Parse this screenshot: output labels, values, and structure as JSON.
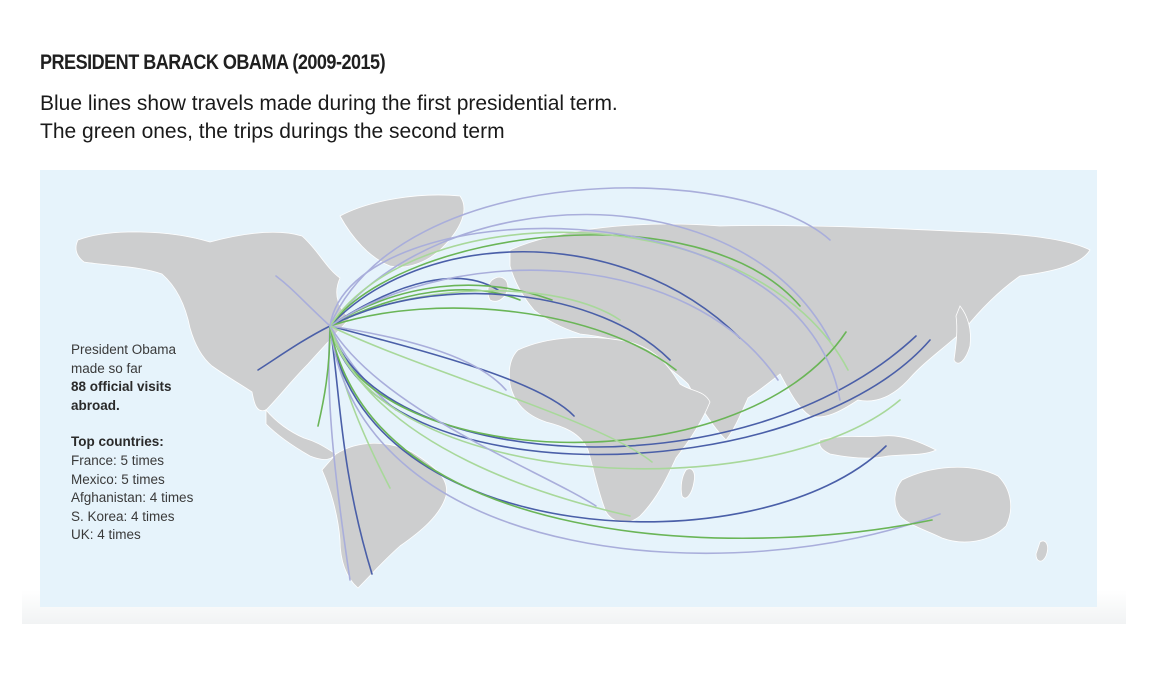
{
  "header": {
    "title": "PRESIDENT BARACK OBAMA (2009-2015)",
    "subtitle_line1": "Blue lines show travels made during the first presidential term.",
    "subtitle_line2": "The green ones, the trips durings the second term"
  },
  "map": {
    "colors": {
      "ocean": "#e6f3fb",
      "land": "#cdcecf",
      "first_term_dark": "#4a5fa8",
      "first_term_light": "#a9aedb",
      "second_term_dark": "#6ab557",
      "second_term_light": "#a8d89a"
    },
    "origin": "Washington, D.C.",
    "routes": [
      {
        "dest": "Mexico",
        "term": "first"
      },
      {
        "dest": "Canada",
        "term": "first"
      },
      {
        "dest": "Brazil",
        "term": "first"
      },
      {
        "dest": "Chile",
        "term": "first"
      },
      {
        "dest": "Argentina",
        "term": "second"
      },
      {
        "dest": "Colombia",
        "term": "first"
      },
      {
        "dest": "Peru",
        "term": "second"
      },
      {
        "dest": "United Kingdom",
        "term": "first"
      },
      {
        "dest": "France",
        "term": "second"
      },
      {
        "dest": "Germany",
        "term": "second"
      },
      {
        "dest": "Russia",
        "term": "first"
      },
      {
        "dest": "Turkey",
        "term": "second"
      },
      {
        "dest": "Afghanistan",
        "term": "first"
      },
      {
        "dest": "Saudi Arabia",
        "term": "second"
      },
      {
        "dest": "India",
        "term": "first"
      },
      {
        "dest": "China",
        "term": "first"
      },
      {
        "dest": "Japan",
        "term": "first"
      },
      {
        "dest": "S. Korea",
        "term": "second"
      },
      {
        "dest": "Indonesia",
        "term": "first"
      },
      {
        "dest": "Australia",
        "term": "second"
      },
      {
        "dest": "South Africa",
        "term": "second"
      },
      {
        "dest": "Kenya",
        "term": "first"
      },
      {
        "dest": "Ghana",
        "term": "first"
      },
      {
        "dest": "Tanzania",
        "term": "second"
      }
    ]
  },
  "panel": {
    "intro_line1": "President Obama",
    "intro_line2": "made so far",
    "visits_line1": "88 official visits",
    "visits_line2": "abroad.",
    "top_heading": "Top countries:",
    "top_countries": [
      "France: 5 times",
      "Mexico: 5 times",
      "Afghanistan: 4 times",
      "S. Korea: 4 times",
      "UK: 4 times"
    ]
  }
}
